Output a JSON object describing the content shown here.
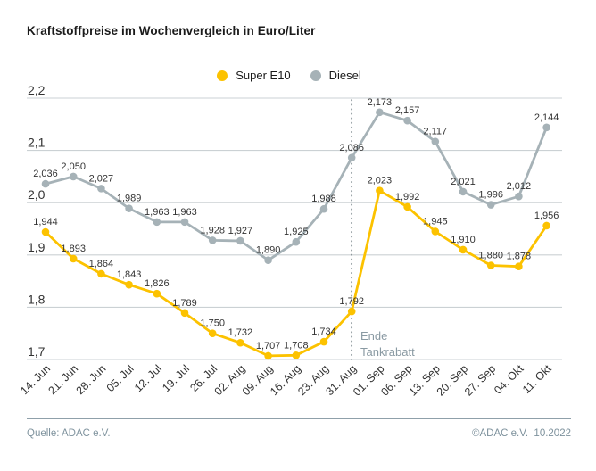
{
  "title": "Kraftstoffpreise im Wochenvergleich in Euro/Liter",
  "legend": {
    "items": [
      {
        "label": "Super E10",
        "color": "#FCC200"
      },
      {
        "label": "Diesel",
        "color": "#A6B2B7"
      }
    ]
  },
  "annotation": {
    "line1": "Ende",
    "line2": "Tankrabatt"
  },
  "footer": {
    "source": "Quelle: ADAC e.V.",
    "copyright": "©ADAC e.V.  10.2022"
  },
  "chart_data": {
    "type": "line",
    "title": "Kraftstoffpreise im Wochenvergleich in Euro/Liter",
    "xlabel": "",
    "ylabel": "Euro/Liter",
    "categories": [
      "14. Jun",
      "21. Jun",
      "28. Jun",
      "05. Jul",
      "12. Jul",
      "19. Jul",
      "26. Jul",
      "02. Aug",
      "09. Aug",
      "16. Aug",
      "23. Aug",
      "31. Aug",
      "01. Sep",
      "06. Sep",
      "13. Sep",
      "20. Sep",
      "27. Sep",
      "04. Okt",
      "11. Okt"
    ],
    "series": [
      {
        "name": "Super E10",
        "color": "#FCC200",
        "values": [
          1.944,
          1.893,
          1.864,
          1.843,
          1.826,
          1.789,
          1.75,
          1.732,
          1.707,
          1.708,
          1.734,
          1.792,
          2.023,
          1.992,
          1.945,
          1.91,
          1.88,
          1.878,
          1.956
        ]
      },
      {
        "name": "Diesel",
        "color": "#A6B2B7",
        "values": [
          2.036,
          2.05,
          2.027,
          1.989,
          1.963,
          1.963,
          1.928,
          1.927,
          1.89,
          1.925,
          1.988,
          2.086,
          2.173,
          2.157,
          2.117,
          2.021,
          1.996,
          2.012,
          2.144
        ]
      }
    ],
    "ylim": [
      1.7,
      2.2
    ],
    "ytick_step": 0.1,
    "ytick_labels": [
      "1,7",
      "1,8",
      "1,9",
      "2,0",
      "2,1",
      "2,2"
    ],
    "decimal_separator": ",",
    "grid": "horizontal",
    "legend_position": "top-center",
    "vline_at": "31. Aug",
    "vline_annotation": "Ende Tankrabatt",
    "colors": {
      "grid": "#cbd1d4",
      "axis_text": "#333333",
      "value_labels": "#333333",
      "vline": "#5f6e74",
      "annotation_text": "#8a9aa3",
      "footer_text": "#7e929d"
    }
  }
}
